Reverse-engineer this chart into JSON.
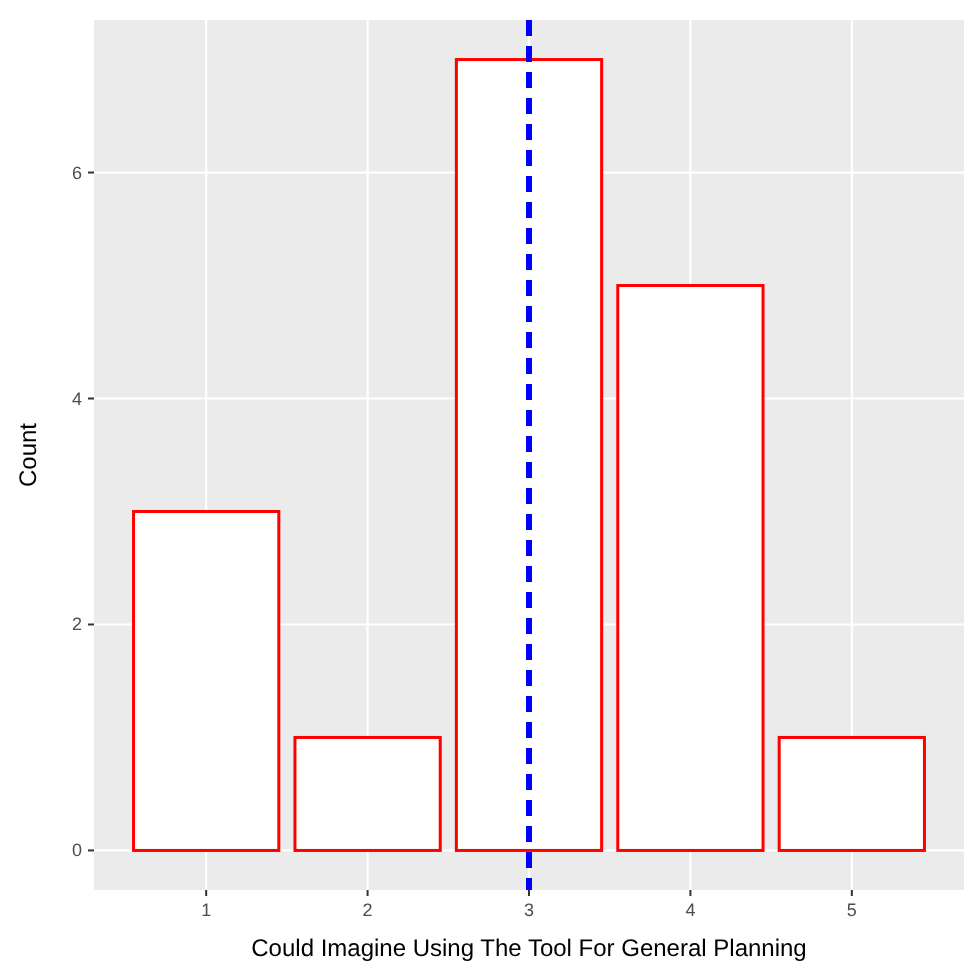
{
  "chart_data": {
    "type": "bar",
    "xlabel": "Could Imagine Using The Tool For General Planning",
    "ylabel": "Count",
    "x": [
      1,
      2,
      3,
      4,
      5
    ],
    "series": [
      {
        "color": "#ff0000",
        "values": [
          3,
          1,
          7,
          5,
          1
        ]
      }
    ],
    "xlim": [
      0.305,
      5.695
    ],
    "xticks": [
      1,
      2,
      3,
      4,
      5
    ],
    "ylim": [
      -0.35,
      7.35
    ],
    "yticks": [
      0,
      2,
      4,
      6
    ],
    "grid": true,
    "ref_lines": [
      {
        "axis": "x",
        "value": 3,
        "color": "#0000ff",
        "line_style": "dashed"
      }
    ]
  }
}
